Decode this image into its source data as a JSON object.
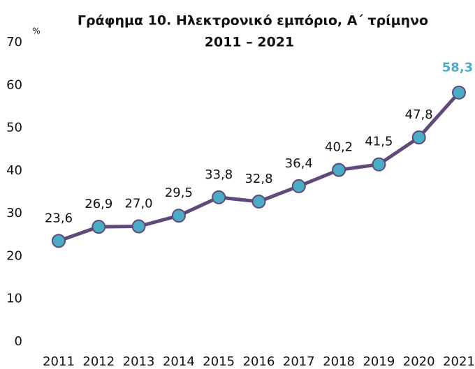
{
  "chart_data": {
    "type": "line",
    "title": [
      "Γράφημα 10. Ηλεκτρονικό εμπόριο,  Α΄ τρίμηνο",
      "2011 – 2021"
    ],
    "y_unit": "%",
    "categories": [
      "2011",
      "2012",
      "2013",
      "2014",
      "2015",
      "2016",
      "2017",
      "2018",
      "2019",
      "2020",
      "2021"
    ],
    "series": [
      {
        "name": "Ηλεκτρονικό εμπόριο",
        "color": "#604a7b",
        "marker_color": "#4bacc6",
        "values": [
          23.6,
          26.9,
          27.0,
          29.5,
          33.8,
          32.8,
          36.4,
          40.2,
          41.5,
          47.8,
          58.3
        ],
        "value_labels": [
          "23,6",
          "26,9",
          "27,0",
          "29,5",
          "33,8",
          "32,8",
          "36,4",
          "40,2",
          "41,5",
          "47,8",
          "58,3"
        ]
      }
    ],
    "highlight": {
      "index": 10,
      "color": "#4bacc6"
    },
    "ylim": [
      0,
      70
    ],
    "yticks": [
      0,
      10,
      20,
      30,
      40,
      50,
      60,
      70
    ],
    "grid": false
  }
}
